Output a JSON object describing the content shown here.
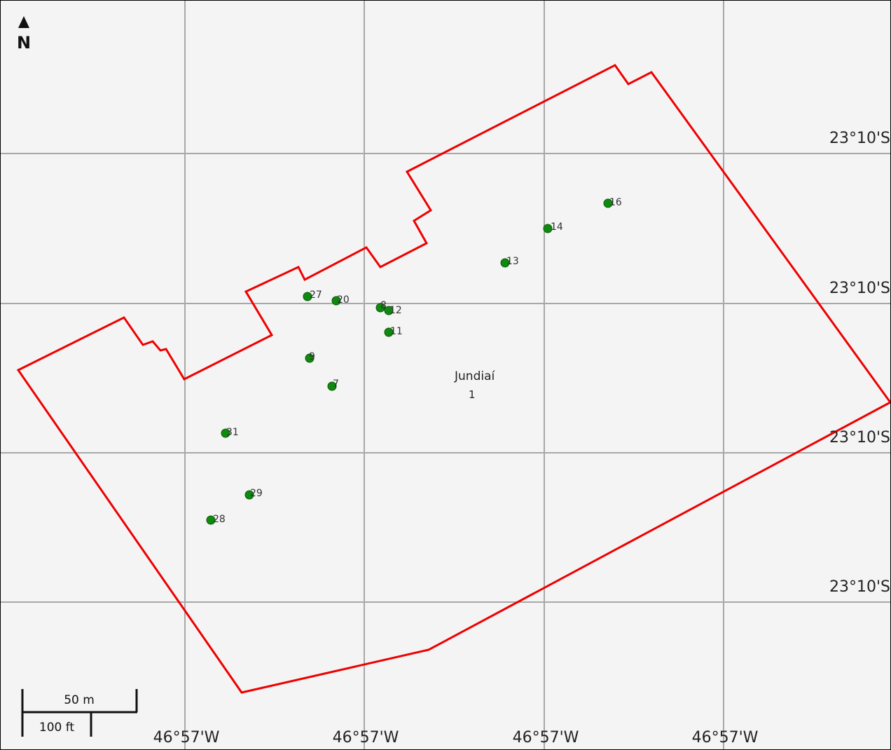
{
  "map": {
    "north_label": "N",
    "area_name": "Jundiaí",
    "area_count": "1",
    "colors": {
      "background": "#f4f4f4",
      "grid": "#a8a8a8",
      "boundary": "#ee0000",
      "points": "#0e8a0e"
    },
    "latitude_labels": [
      "23°10'S",
      "23°10'S",
      "23°10'S",
      "23°10'S"
    ],
    "longitude_labels": [
      "46°57'W",
      "46°57'W",
      "46°57'W",
      "46°57'W"
    ],
    "scale_bar": {
      "metric": "50 m",
      "imperial": "100 ft"
    },
    "points": [
      {
        "id": "16"
      },
      {
        "id": "14"
      },
      {
        "id": "13"
      },
      {
        "id": "27"
      },
      {
        "id": "20"
      },
      {
        "id": "8"
      },
      {
        "id": "12"
      },
      {
        "id": "11"
      },
      {
        "id": "9"
      },
      {
        "id": "7"
      },
      {
        "id": "31"
      },
      {
        "id": "29"
      },
      {
        "id": "28"
      }
    ]
  }
}
